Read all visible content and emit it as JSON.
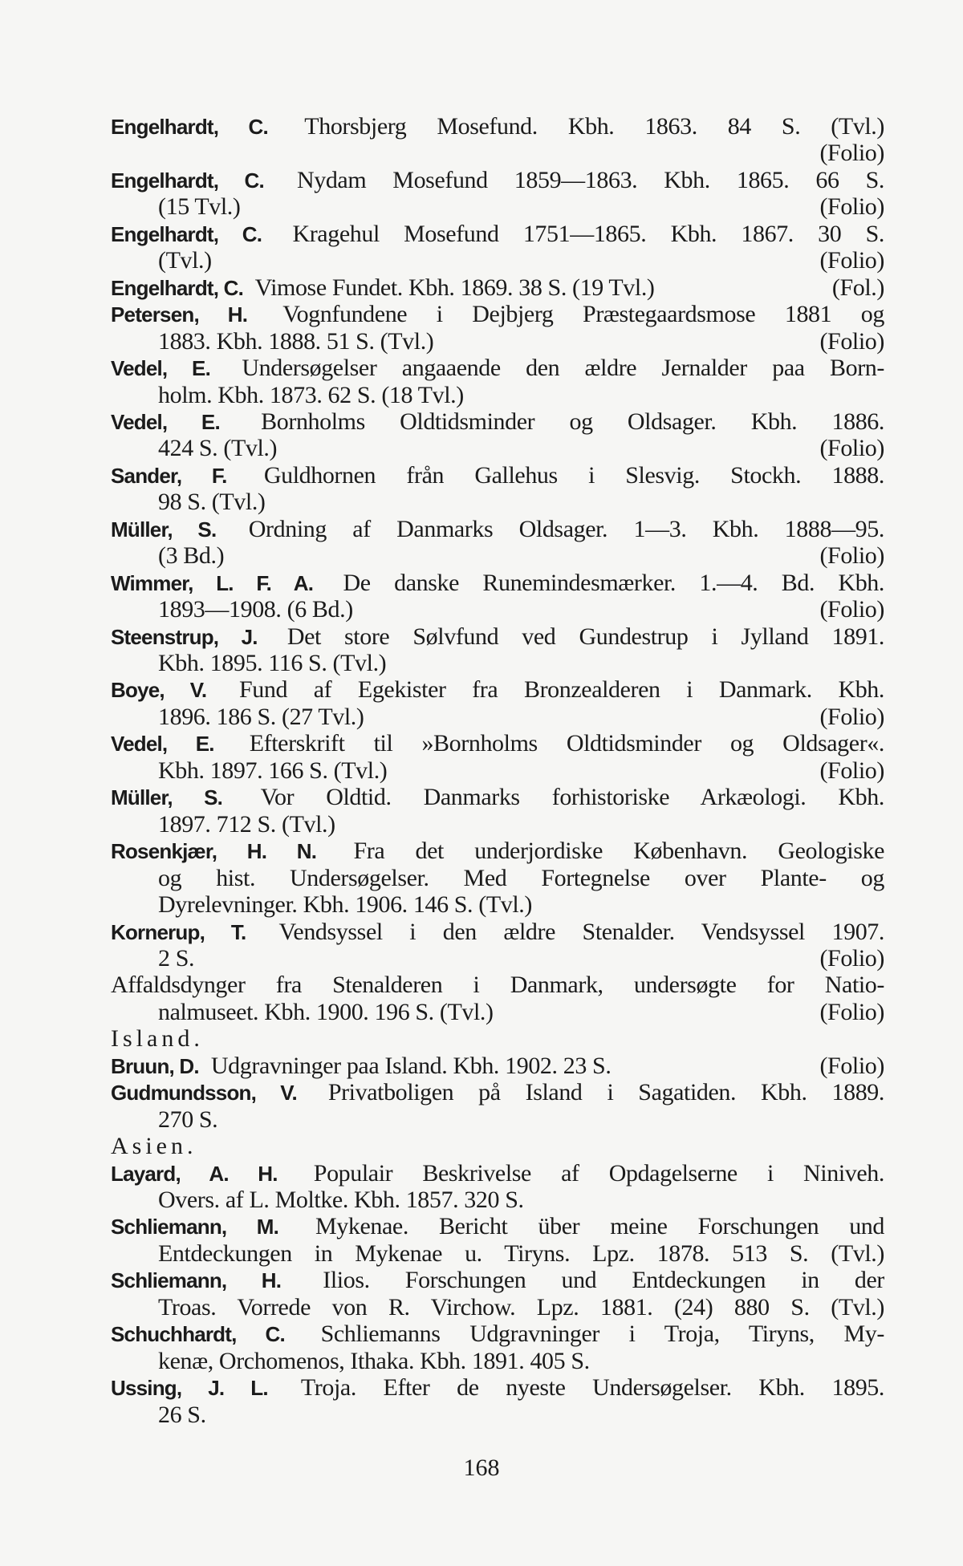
{
  "lines": [
    {
      "b": "Engelhardt, C.",
      "t": "Thorsbjerg Mosefund. Kbh. 1863. 84 S. (Tvl.)",
      "j": 1
    },
    {
      "t": "",
      "r": "(Folio)",
      "i": 1
    },
    {
      "b": "Engelhardt, C.",
      "t": "Nydam Mosefund 1859—1863. Kbh. 1865. 66 S.",
      "j": 1
    },
    {
      "t": "(15 Tvl.)",
      "r": "(Folio)",
      "i": 1
    },
    {
      "b": "Engelhardt, C.",
      "t": "Kragehul Mosefund 1751—1865. Kbh. 1867. 30 S.",
      "j": 1
    },
    {
      "t": "(Tvl.)",
      "r": "(Folio)",
      "i": 1
    },
    {
      "b": "Engelhardt, C.",
      "t": "Vimose Fundet. Kbh. 1869. 38 S. (19 Tvl.)",
      "r": "(Fol.)"
    },
    {
      "b": "Petersen, H.",
      "t": "Vognfundene i Dejbjerg Præstegaardsmose 1881 og",
      "j": 1
    },
    {
      "t": "1883. Kbh. 1888. 51 S. (Tvl.)",
      "r": "(Folio)",
      "i": 1
    },
    {
      "b": "Vedel, E.",
      "t": "Undersøgelser angaaende den ældre Jernalder paa Born-",
      "j": 1
    },
    {
      "t": "holm. Kbh. 1873. 62 S. (18 Tvl.)",
      "i": 1
    },
    {
      "b": "Vedel, E.",
      "t": "Bornholms Oldtidsminder og Oldsager. Kbh. 1886.",
      "j": 1
    },
    {
      "t": "424 S. (Tvl.)",
      "r": "(Folio)",
      "i": 1
    },
    {
      "b": "Sander, F.",
      "t": "Guldhornen från Gallehus i Slesvig. Stockh. 1888.",
      "j": 1
    },
    {
      "t": "98 S. (Tvl.)",
      "i": 1
    },
    {
      "b": "Müller, S.",
      "t": "Ordning af Danmarks Oldsager. 1—3. Kbh. 1888—95.",
      "j": 1
    },
    {
      "t": "(3 Bd.)",
      "r": "(Folio)",
      "i": 1
    },
    {
      "b": "Wimmer, L. F. A.",
      "t": "De danske Runemindesmærker. 1.—4. Bd. Kbh.",
      "j": 1
    },
    {
      "t": "1893—1908. (6 Bd.)",
      "r": "(Folio)",
      "i": 1
    },
    {
      "b": "Steenstrup, J.",
      "t": "Det store Sølvfund ved Gundestrup i Jylland 1891.",
      "j": 1
    },
    {
      "t": "Kbh. 1895. 116 S. (Tvl.)",
      "i": 1
    },
    {
      "b": "Boye, V.",
      "t": "Fund af Egekister fra Bronzealderen i Danmark. Kbh.",
      "j": 1
    },
    {
      "t": "1896. 186 S. (27 Tvl.)",
      "r": "(Folio)",
      "i": 1
    },
    {
      "b": "Vedel, E.",
      "t": "Efterskrift til »Bornholms Oldtidsminder og Oldsager«.",
      "j": 1
    },
    {
      "t": "Kbh. 1897. 166 S. (Tvl.)",
      "r": "(Folio)",
      "i": 1
    },
    {
      "b": "Müller, S.",
      "t": "Vor Oldtid. Danmarks forhistoriske Arkæologi. Kbh.",
      "j": 1
    },
    {
      "t": "1897. 712 S. (Tvl.)",
      "i": 1
    },
    {
      "b": "Rosenkjær, H. N.",
      "t": "Fra det underjordiske København. Geologiske",
      "j": 1
    },
    {
      "t": "og hist. Undersøgelser. Med Fortegnelse over Plante- og",
      "i": 1,
      "j": 1
    },
    {
      "t": "Dyrelevninger. Kbh. 1906. 146 S. (Tvl.)",
      "i": 1
    },
    {
      "b": "Kornerup, T.",
      "t": "Vendsyssel i den ældre Stenalder. Vendsyssel 1907.",
      "j": 1
    },
    {
      "t": "2 S.",
      "r": "(Folio)",
      "i": 1
    },
    {
      "t": "Affaldsdynger fra Stenalderen i Danmark, undersøgte for Natio-",
      "j": 1
    },
    {
      "t": "nalmuseet. Kbh. 1900. 196 S. (Tvl.)",
      "r": "(Folio)",
      "i": 1
    },
    {
      "t": "Island.",
      "s": 1
    },
    {
      "b": "Bruun, D.",
      "t": "Udgravninger paa Island. Kbh. 1902. 23 S.",
      "r": "(Folio)"
    },
    {
      "b": "Gudmundsson, V.",
      "t": "Privatboligen på Island i Sagatiden. Kbh. 1889.",
      "j": 1
    },
    {
      "t": "270 S.",
      "i": 1
    },
    {
      "t": "Asien.",
      "s": 1
    },
    {
      "b": "Layard, A. H.",
      "t": "Populair Beskrivelse af Opdagelserne i Niniveh.",
      "j": 1
    },
    {
      "t": "Overs. af L. Moltke. Kbh. 1857. 320 S.",
      "i": 1
    },
    {
      "b": "Schliemann, M.",
      "t": "Mykenae. Bericht über meine Forschungen und",
      "j": 1
    },
    {
      "t": "Entdeckungen in Mykenae u. Tiryns. Lpz. 1878. 513 S. (Tvl.)",
      "i": 1,
      "j": 1
    },
    {
      "b": "Schliemann, H.",
      "t": "Ilios. Forschungen und Entdeckungen in der",
      "j": 1
    },
    {
      "t": "Troas. Vorrede von R. Virchow. Lpz. 1881. (24) 880 S. (Tvl.)",
      "i": 1,
      "j": 1
    },
    {
      "b": "Schuchhardt, C.",
      "t": "Schliemanns Udgravninger i Troja, Tiryns, My-",
      "j": 1
    },
    {
      "t": "kenæ, Orchomenos, Ithaka. Kbh. 1891. 405 S.",
      "i": 1
    },
    {
      "b": "Ussing, J. L.",
      "t": "Troja. Efter de nyeste Undersøgelser. Kbh. 1895.",
      "j": 1
    },
    {
      "t": "26 S.",
      "i": 1
    }
  ],
  "page_number": "168"
}
